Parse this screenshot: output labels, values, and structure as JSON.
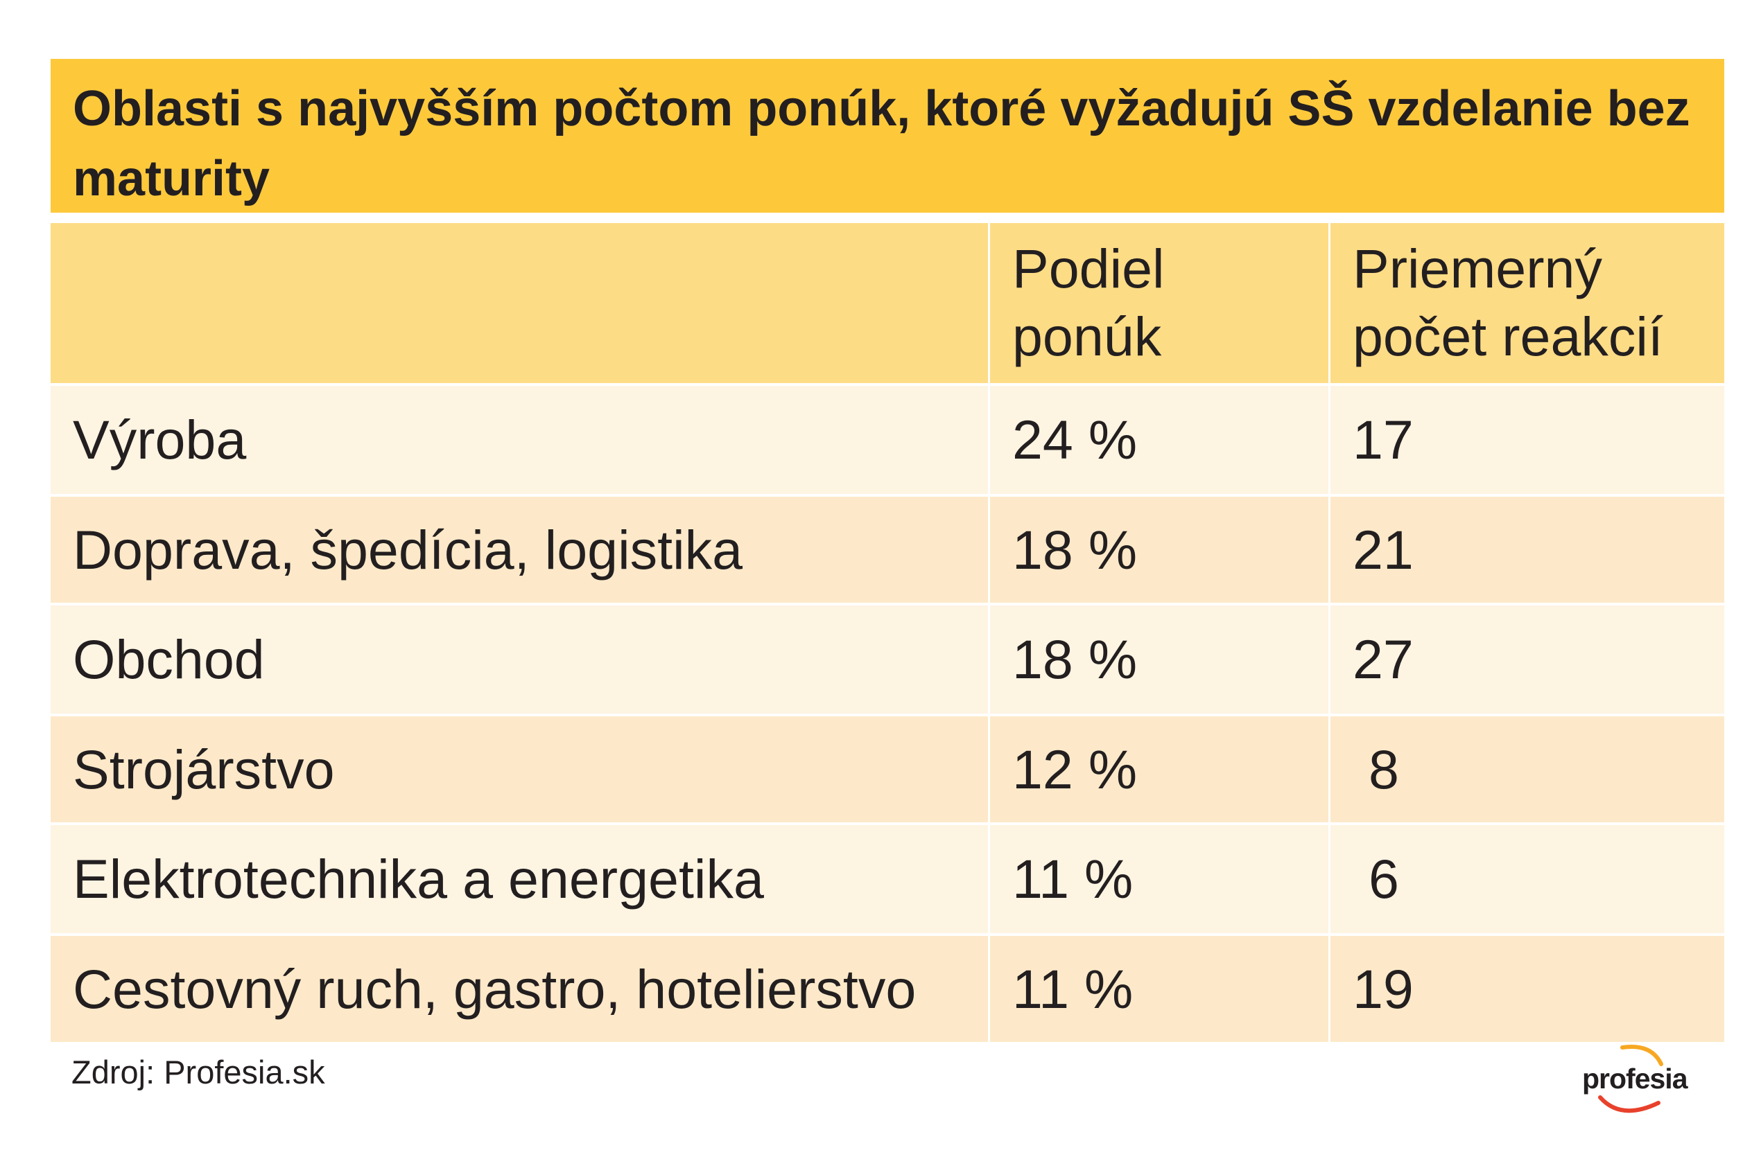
{
  "title": "Oblasti s najvyšším počtom ponúk, ktoré vyžadujú SŠ vzdelanie bez maturity",
  "headers": [
    "",
    "Podiel ponúk",
    "Priemerný počet reakcií"
  ],
  "rows": [
    {
      "area": "Výroba",
      "share": "24 %",
      "reactions": "17"
    },
    {
      "area": "Doprava, špedícia, logistika",
      "share": "18 %",
      "reactions": "21"
    },
    {
      "area": "Obchod",
      "share": "18 %",
      "reactions": "27"
    },
    {
      "area": "Strojárstvo",
      "share": "12 %",
      "reactions": "8"
    },
    {
      "area": "Elektrotechnika a energetika",
      "share": "11 %",
      "reactions": "6"
    },
    {
      "area": "Cestovný ruch, gastro, hotelierstvo",
      "share": "11 %",
      "reactions": "19"
    }
  ],
  "source": "Zdroj: Profesia.sk",
  "logo": {
    "text": "profesia",
    "icon": "profesia-swoosh-icon",
    "accent_color": "#e8412c",
    "accent_color_2": "#f7a823"
  },
  "colors": {
    "title_bg": "#fdc93b",
    "header_bg": "#fddc86",
    "row_light": "#fef4e2",
    "row_dark": "#fde9c9",
    "text": "#231f20"
  }
}
